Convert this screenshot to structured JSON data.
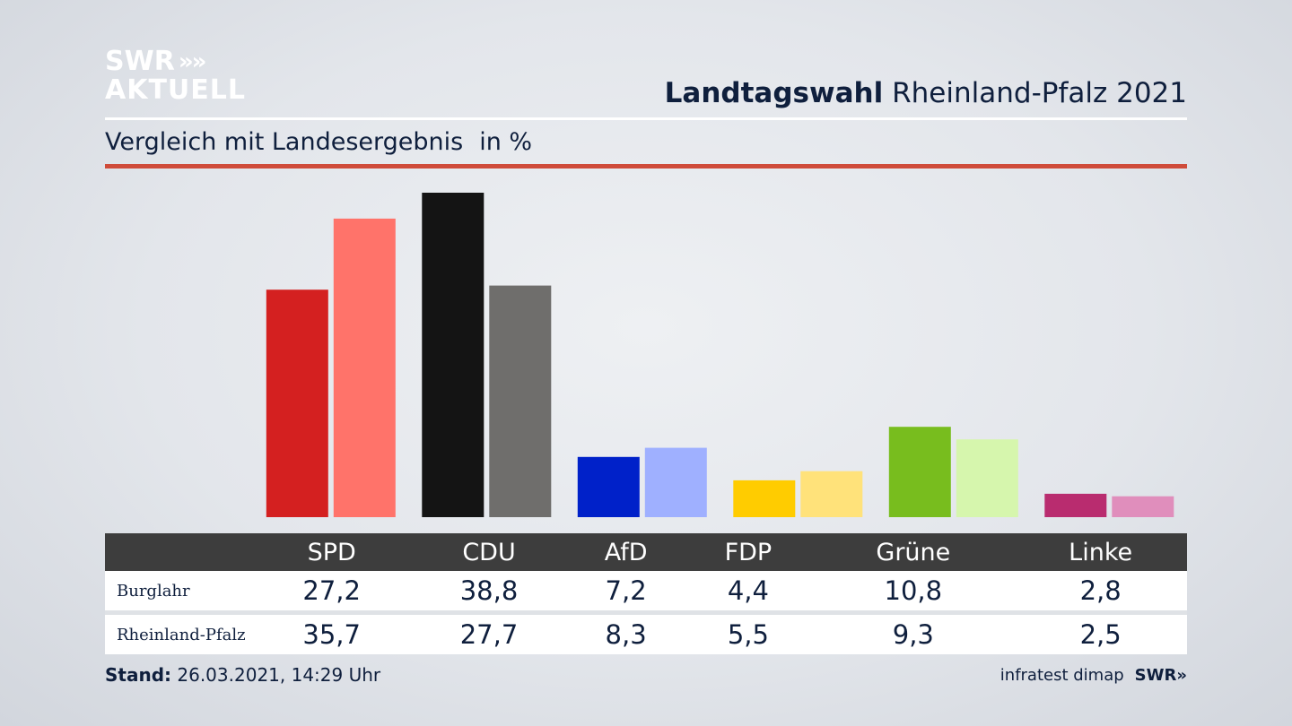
{
  "logo": {
    "line1": "SWR",
    "arrows": "»",
    "line2": "AKTUELL"
  },
  "header": {
    "title_bold": "Landtagswahl",
    "title_rest": "Rheinland-Pfalz 2021"
  },
  "subtitle": {
    "text": "Vergleich mit Landesergebnis",
    "unit": "in %"
  },
  "table": {
    "row1_label": "Burglahr",
    "row2_label": "Rheinland-Pfalz"
  },
  "footer": {
    "stand_label": "Stand:",
    "stand_value": "26.03.2021, 14:29 Uhr",
    "source": "infratest dimap",
    "source_logo": "SWR",
    "source_arrows": "»"
  },
  "chart_data": {
    "type": "bar",
    "title": "Landtagswahl Rheinland-Pfalz 2021",
    "subtitle": "Vergleich mit Landesergebnis",
    "ylabel": "in %",
    "ylim": [
      0,
      38.8
    ],
    "categories": [
      "SPD",
      "CDU",
      "AfD",
      "FDP",
      "Grüne",
      "Linke"
    ],
    "series": [
      {
        "name": "Burglahr",
        "values": [
          27.2,
          38.8,
          7.2,
          4.4,
          10.8,
          2.8
        ],
        "display": [
          "27,2",
          "38,8",
          "7,2",
          "4,4",
          "10,8",
          "2,8"
        ],
        "colors": [
          "#d42020",
          "#141414",
          "#0021c9",
          "#ffcc00",
          "#78bd1e",
          "#b92c6f"
        ]
      },
      {
        "name": "Rheinland-Pfalz",
        "values": [
          35.7,
          27.7,
          8.3,
          5.5,
          9.3,
          2.5
        ],
        "display": [
          "35,7",
          "27,7",
          "8,3",
          "5,5",
          "9,3",
          "2,5"
        ],
        "colors": [
          "#ff736a",
          "#6f6e6c",
          "#9fb0ff",
          "#ffe27a",
          "#d6f6ad",
          "#e08ebc"
        ]
      }
    ],
    "grid": false,
    "legend": "table-below"
  }
}
